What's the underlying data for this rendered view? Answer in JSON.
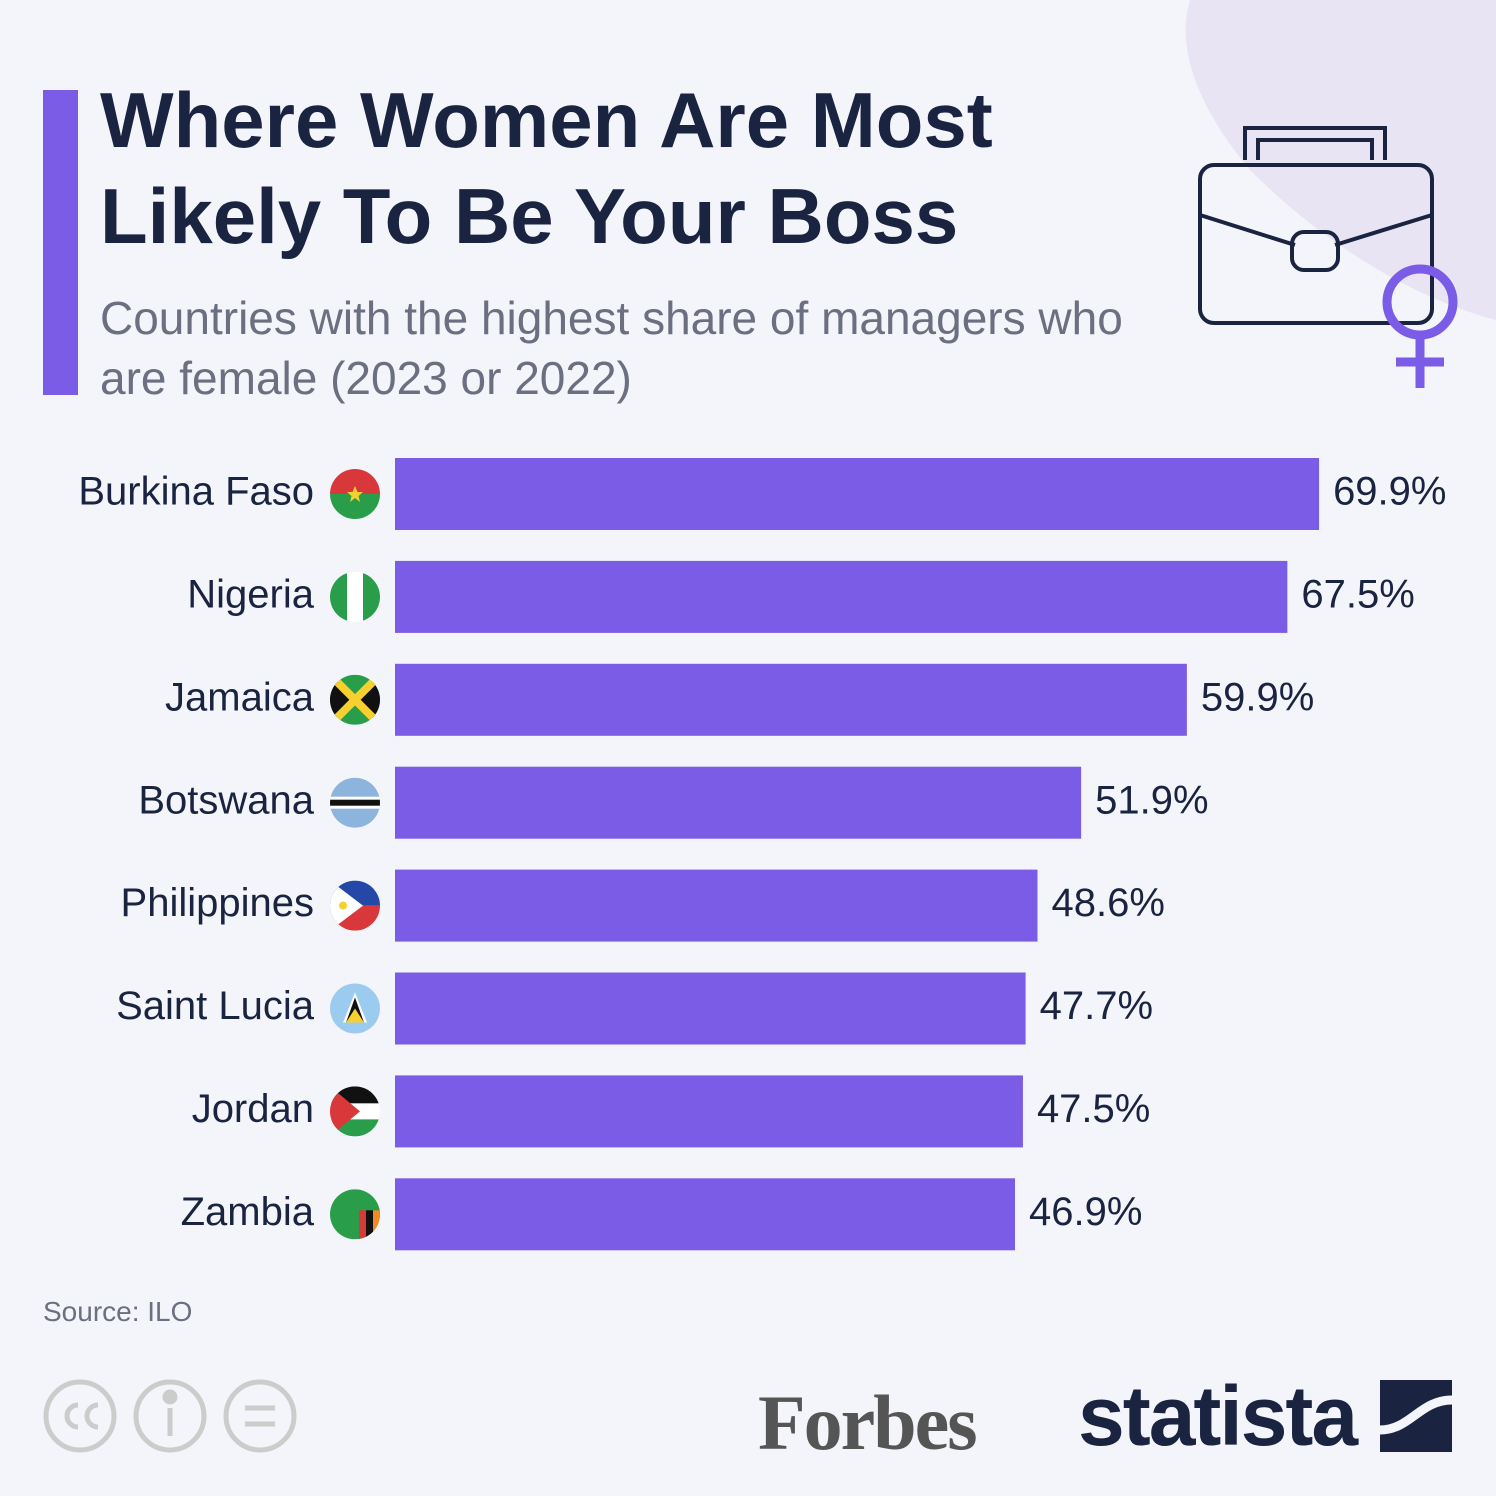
{
  "chart_data": {
    "type": "bar",
    "orientation": "horizontal",
    "title": "Where Women Are Most Likely To Be Your Boss",
    "subtitle": "Countries with the highest share of managers who are female (2023 or 2022)",
    "categories": [
      "Burkina Faso",
      "Nigeria",
      "Jamaica",
      "Botswana",
      "Philippines",
      "Saint Lucia",
      "Jordan",
      "Zambia"
    ],
    "values": [
      69.9,
      67.5,
      59.9,
      51.9,
      48.6,
      47.7,
      47.5,
      46.9
    ],
    "value_labels": [
      "69.9%",
      "67.5%",
      "59.9%",
      "51.9%",
      "48.6%",
      "47.7%",
      "47.5%",
      "46.9%"
    ],
    "color": "#7b5ce6",
    "source": "Source: ILO"
  },
  "footer": {
    "logos": [
      "Forbes",
      "statista"
    ]
  }
}
